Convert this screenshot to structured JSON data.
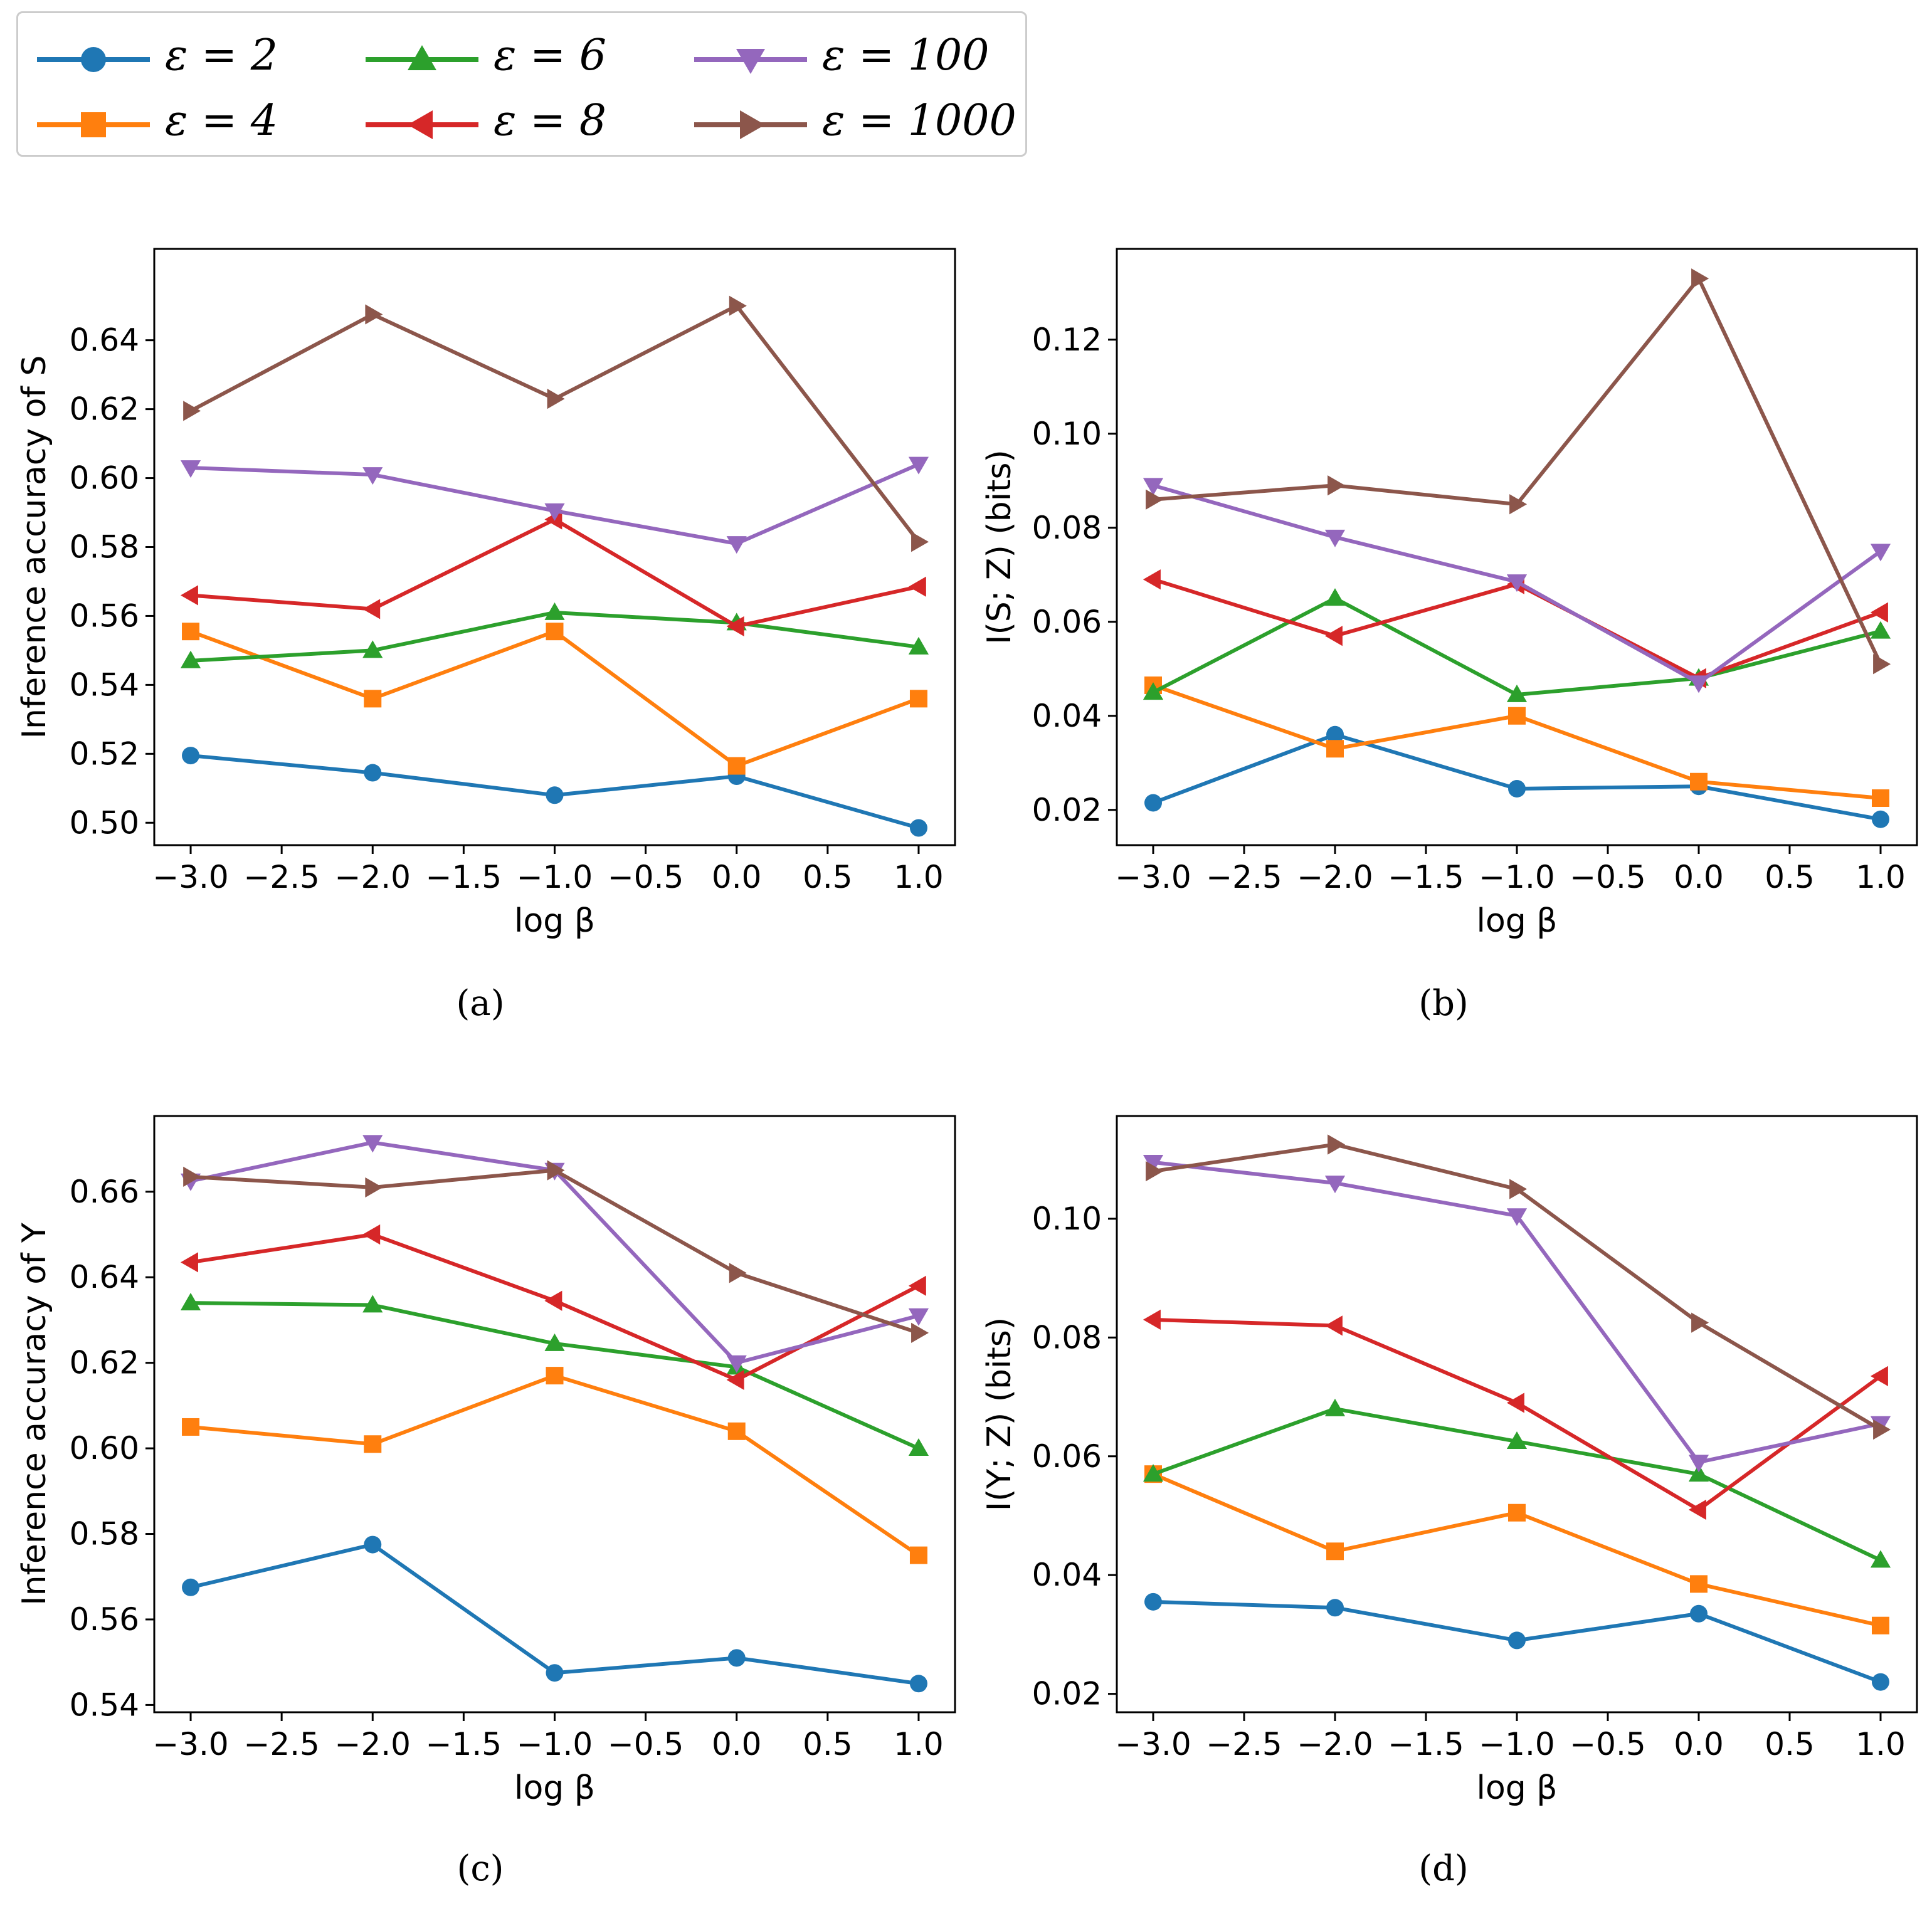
{
  "legend": {
    "entries": [
      {
        "label": "ε = 2",
        "color": "#1f77b4",
        "marker": "circle"
      },
      {
        "label": "ε = 4",
        "color": "#ff7f0e",
        "marker": "square"
      },
      {
        "label": "ε = 6",
        "color": "#2ca02c",
        "marker": "triangle-up"
      },
      {
        "label": "ε = 8",
        "color": "#d62728",
        "marker": "triangle-left"
      },
      {
        "label": "ε = 100",
        "color": "#9467bd",
        "marker": "triangle-down"
      },
      {
        "label": "ε = 1000",
        "color": "#8c564b",
        "marker": "triangle-right"
      }
    ]
  },
  "captions": [
    "(a)",
    "(b)",
    "(c)",
    "(d)"
  ],
  "chart_data": [
    {
      "type": "line",
      "title": "",
      "xlabel": "log β",
      "ylabel": "Inference accuracy of S",
      "x": [
        -3.0,
        -2.0,
        -1.0,
        0.0,
        1.0
      ],
      "xticks": [
        "−3.0",
        "−2.5",
        "−2.0",
        "−1.5",
        "−1.0",
        "−0.5",
        "0.0",
        "0.5",
        "1.0"
      ],
      "xlim": [
        -3.2,
        1.2
      ],
      "ylim": [
        0.4935,
        0.6665
      ],
      "yticks": [
        "0.50",
        "0.52",
        "0.54",
        "0.56",
        "0.58",
        "0.60",
        "0.62",
        "0.64"
      ],
      "series": [
        {
          "name": "ε = 2",
          "values": [
            0.5195,
            0.5145,
            0.508,
            0.5135,
            0.4985
          ]
        },
        {
          "name": "ε = 4",
          "values": [
            0.5555,
            0.536,
            0.5555,
            0.5165,
            0.536
          ]
        },
        {
          "name": "ε = 6",
          "values": [
            0.547,
            0.55,
            0.561,
            0.558,
            0.551
          ]
        },
        {
          "name": "ε = 8",
          "values": [
            0.566,
            0.562,
            0.588,
            0.557,
            0.5685
          ]
        },
        {
          "name": "ε = 100",
          "values": [
            0.603,
            0.601,
            0.5905,
            0.581,
            0.604
          ]
        },
        {
          "name": "ε = 1000",
          "values": [
            0.6195,
            0.6475,
            0.623,
            0.65,
            0.5815
          ]
        }
      ]
    },
    {
      "type": "line",
      "title": "",
      "xlabel": "log β",
      "ylabel": "I(S; Z) (bits)",
      "x": [
        -3.0,
        -2.0,
        -1.0,
        0.0,
        1.0
      ],
      "xticks": [
        "−3.0",
        "−2.5",
        "−2.0",
        "−1.5",
        "−1.0",
        "−0.5",
        "0.0",
        "0.5",
        "1.0"
      ],
      "xlim": [
        -3.2,
        1.2
      ],
      "ylim": [
        0.0125,
        0.1393
      ],
      "yticks": [
        "0.02",
        "0.04",
        "0.06",
        "0.08",
        "0.10",
        "0.12"
      ],
      "series": [
        {
          "name": "ε = 2",
          "values": [
            0.0215,
            0.036,
            0.0245,
            0.025,
            0.018
          ]
        },
        {
          "name": "ε = 4",
          "values": [
            0.0465,
            0.033,
            0.04,
            0.026,
            0.0225
          ]
        },
        {
          "name": "ε = 6",
          "values": [
            0.045,
            0.065,
            0.0445,
            0.048,
            0.058
          ]
        },
        {
          "name": "ε = 8",
          "values": [
            0.069,
            0.057,
            0.068,
            0.048,
            0.062
          ]
        },
        {
          "name": "ε = 100",
          "values": [
            0.089,
            0.078,
            0.0685,
            0.047,
            0.075
          ]
        },
        {
          "name": "ε = 1000",
          "values": [
            0.086,
            0.089,
            0.085,
            0.133,
            0.051
          ]
        }
      ]
    },
    {
      "type": "line",
      "title": "",
      "xlabel": "log β",
      "ylabel": "Inference accuracy of Y",
      "x": [
        -3.0,
        -2.0,
        -1.0,
        0.0,
        1.0
      ],
      "xticks": [
        "−3.0",
        "−2.5",
        "−2.0",
        "−1.5",
        "−1.0",
        "−0.5",
        "0.0",
        "0.5",
        "1.0"
      ],
      "xlim": [
        -3.2,
        1.2
      ],
      "ylim": [
        0.5383,
        0.6777
      ],
      "yticks": [
        "0.54",
        "0.56",
        "0.58",
        "0.60",
        "0.62",
        "0.64",
        "0.66"
      ],
      "series": [
        {
          "name": "ε = 2",
          "values": [
            0.5675,
            0.5775,
            0.5475,
            0.551,
            0.545
          ]
        },
        {
          "name": "ε = 4",
          "values": [
            0.605,
            0.601,
            0.617,
            0.604,
            0.575
          ]
        },
        {
          "name": "ε = 6",
          "values": [
            0.634,
            0.6335,
            0.6245,
            0.619,
            0.6
          ]
        },
        {
          "name": "ε = 8",
          "values": [
            0.6435,
            0.65,
            0.6345,
            0.616,
            0.638
          ]
        },
        {
          "name": "ε = 100",
          "values": [
            0.6625,
            0.6715,
            0.665,
            0.62,
            0.631
          ]
        },
        {
          "name": "ε = 1000",
          "values": [
            0.6635,
            0.661,
            0.665,
            0.641,
            0.627
          ]
        }
      ]
    },
    {
      "type": "line",
      "title": "",
      "xlabel": "log β",
      "ylabel": "I(Y; Z) (bits)",
      "x": [
        -3.0,
        -2.0,
        -1.0,
        0.0,
        1.0
      ],
      "xticks": [
        "−3.0",
        "−2.5",
        "−2.0",
        "−1.5",
        "−1.0",
        "−0.5",
        "0.0",
        "0.5",
        "1.0"
      ],
      "xlim": [
        -3.2,
        1.2
      ],
      "ylim": [
        0.0169,
        0.1173
      ],
      "yticks": [
        "0.02",
        "0.04",
        "0.06",
        "0.08",
        "0.10"
      ],
      "series": [
        {
          "name": "ε = 2",
          "values": [
            0.0355,
            0.0345,
            0.029,
            0.0335,
            0.022
          ]
        },
        {
          "name": "ε = 4",
          "values": [
            0.057,
            0.044,
            0.0505,
            0.0385,
            0.0315
          ]
        },
        {
          "name": "ε = 6",
          "values": [
            0.057,
            0.068,
            0.0625,
            0.057,
            0.0425
          ]
        },
        {
          "name": "ε = 8",
          "values": [
            0.083,
            0.082,
            0.069,
            0.051,
            0.0735
          ]
        },
        {
          "name": "ε = 100",
          "values": [
            0.1095,
            0.106,
            0.1005,
            0.059,
            0.0655
          ]
        },
        {
          "name": "ε = 1000",
          "values": [
            0.108,
            0.1125,
            0.105,
            0.0825,
            0.0645
          ]
        }
      ]
    }
  ]
}
